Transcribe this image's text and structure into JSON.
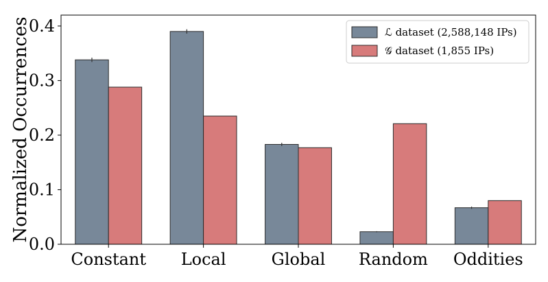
{
  "chart_data": {
    "type": "bar",
    "title": "",
    "xlabel": "",
    "ylabel": "Normalized Occurrences",
    "ylim": [
      0,
      0.42
    ],
    "yticks": [
      "0.0",
      "0.1",
      "0.2",
      "0.3",
      "0.4"
    ],
    "ytick_values": [
      0,
      0.1,
      0.2,
      0.3,
      0.4
    ],
    "categories": [
      "Constant",
      "Local",
      "Global",
      "Random",
      "Oddities"
    ],
    "legend_position": "top-right",
    "series": [
      {
        "name": "ℒ dataset (2,588,148 IPs)",
        "color": "#788899",
        "values": [
          0.338,
          0.39,
          0.183,
          0.023,
          0.067
        ],
        "error": [
          0.004,
          0.004,
          0.003,
          0.001,
          0.002
        ]
      },
      {
        "name": "𝒢 dataset (1,855 IPs)",
        "color": "#d77b7b",
        "values": [
          0.288,
          0.235,
          0.177,
          0.221,
          0.08
        ],
        "error": [
          0,
          0,
          0,
          0,
          0
        ]
      }
    ]
  }
}
